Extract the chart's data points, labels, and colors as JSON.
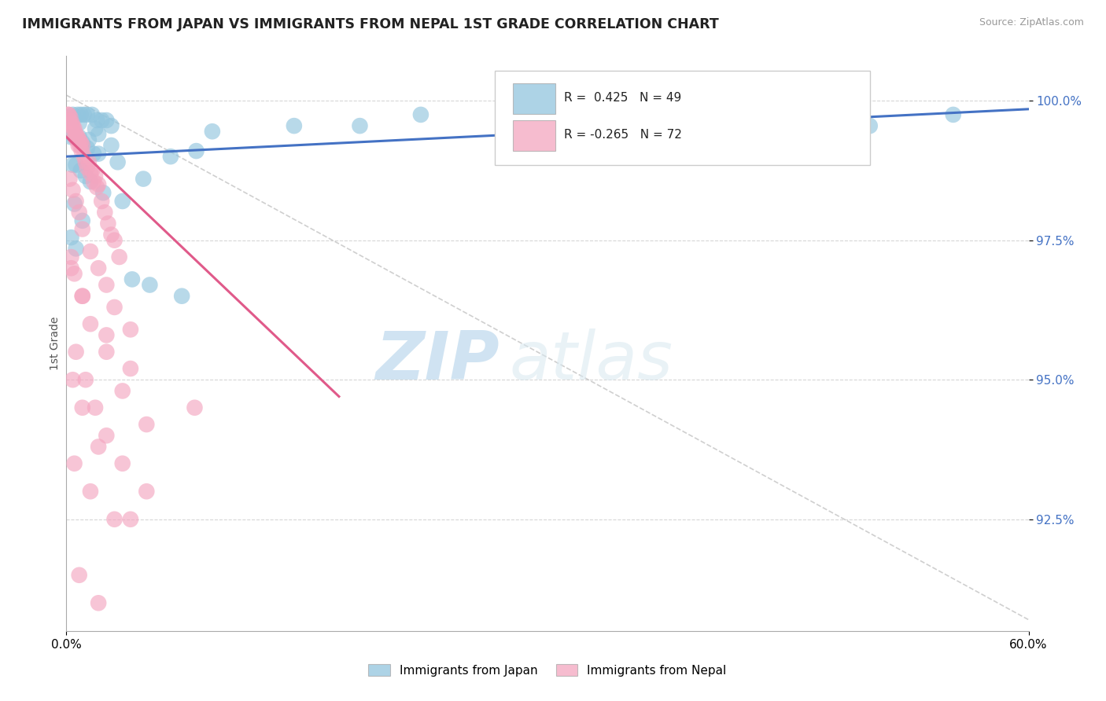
{
  "title": "IMMIGRANTS FROM JAPAN VS IMMIGRANTS FROM NEPAL 1ST GRADE CORRELATION CHART",
  "source": "Source: ZipAtlas.com",
  "ylabel": "1st Grade",
  "xlim": [
    0.0,
    60.0
  ],
  "ylim": [
    90.5,
    100.8
  ],
  "xticks": [
    0.0,
    60.0
  ],
  "xticklabels": [
    "0.0%",
    "60.0%"
  ],
  "yticks": [
    92.5,
    95.0,
    97.5,
    100.0
  ],
  "yticklabels": [
    "92.5%",
    "95.0%",
    "97.5%",
    "100.0%"
  ],
  "japan_color": "#92c5de",
  "nepal_color": "#f4a6c0",
  "japan_R": 0.425,
  "japan_N": 49,
  "nepal_R": -0.265,
  "nepal_N": 72,
  "legend_label_japan": "Immigrants from Japan",
  "legend_label_nepal": "Immigrants from Nepal",
  "japan_scatter_x": [
    0.4,
    0.7,
    0.9,
    1.1,
    1.3,
    1.6,
    1.9,
    2.2,
    2.5,
    2.8,
    0.3,
    0.5,
    0.8,
    1.0,
    1.3,
    1.7,
    2.0,
    0.4,
    0.6,
    0.9,
    1.2,
    1.5,
    2.3,
    0.5,
    1.0,
    0.3,
    0.6,
    4.1,
    5.2,
    7.2,
    9.1,
    14.2,
    18.3,
    22.1,
    30.5,
    38.2,
    50.1,
    55.3,
    3.5,
    4.8,
    6.5,
    8.1,
    2.0,
    2.8,
    3.2,
    1.8,
    0.8,
    1.4,
    0.2
  ],
  "japan_scatter_y": [
    99.75,
    99.75,
    99.75,
    99.75,
    99.75,
    99.75,
    99.65,
    99.65,
    99.65,
    99.55,
    99.35,
    99.35,
    99.35,
    99.25,
    99.15,
    99.05,
    99.05,
    98.85,
    98.85,
    98.75,
    98.65,
    98.55,
    98.35,
    98.15,
    97.85,
    97.55,
    97.35,
    96.8,
    96.7,
    96.5,
    99.45,
    99.55,
    99.55,
    99.75,
    99.45,
    99.75,
    99.55,
    99.75,
    98.2,
    98.6,
    99.0,
    99.1,
    99.4,
    99.2,
    98.9,
    99.5,
    99.6,
    99.3,
    99.7
  ],
  "nepal_scatter_x": [
    0.1,
    0.15,
    0.2,
    0.25,
    0.3,
    0.35,
    0.4,
    0.45,
    0.5,
    0.55,
    0.6,
    0.65,
    0.7,
    0.75,
    0.8,
    0.85,
    0.9,
    0.95,
    1.0,
    1.1,
    1.2,
    1.3,
    1.4,
    1.5,
    1.6,
    1.7,
    1.8,
    1.9,
    2.0,
    2.2,
    2.4,
    2.6,
    2.8,
    3.0,
    3.3,
    0.2,
    0.4,
    0.6,
    0.8,
    1.0,
    1.5,
    2.0,
    2.5,
    3.0,
    4.0,
    0.3,
    0.5,
    1.0,
    1.5,
    2.5,
    3.5,
    5.0,
    0.4,
    1.0,
    2.0,
    0.5,
    1.5,
    3.0,
    4.0,
    0.8,
    2.0,
    0.6,
    1.2,
    1.8,
    2.5,
    3.5,
    5.0,
    0.3,
    1.0,
    2.5,
    4.0,
    8.0
  ],
  "nepal_scatter_y": [
    99.75,
    99.75,
    99.65,
    99.7,
    99.55,
    99.6,
    99.55,
    99.45,
    99.5,
    99.35,
    99.4,
    99.3,
    99.35,
    99.2,
    99.3,
    99.2,
    99.25,
    99.1,
    99.2,
    99.0,
    98.9,
    98.8,
    98.9,
    98.7,
    98.75,
    98.55,
    98.65,
    98.45,
    98.5,
    98.2,
    98.0,
    97.8,
    97.6,
    97.5,
    97.2,
    98.6,
    98.4,
    98.2,
    98.0,
    97.7,
    97.3,
    97.0,
    96.7,
    96.3,
    95.9,
    97.2,
    96.9,
    96.5,
    96.0,
    95.5,
    94.8,
    94.2,
    95.0,
    94.5,
    93.8,
    93.5,
    93.0,
    92.5,
    92.5,
    91.5,
    91.0,
    95.5,
    95.0,
    94.5,
    94.0,
    93.5,
    93.0,
    97.0,
    96.5,
    95.8,
    95.2,
    94.5
  ],
  "japan_line_x0": 0.0,
  "japan_line_y0": 99.0,
  "japan_line_x1": 60.0,
  "japan_line_y1": 99.85,
  "nepal_line_x0": 0.0,
  "nepal_line_y0": 99.35,
  "nepal_line_x1": 17.0,
  "nepal_line_y1": 94.7,
  "diag_x0": 0.0,
  "diag_y0": 100.1,
  "diag_x1": 60.0,
  "diag_y1": 90.7,
  "watermark_zip": "ZIP",
  "watermark_atlas": "atlas",
  "background_color": "#ffffff",
  "grid_color": "#cccccc",
  "ytick_color": "#4472c4",
  "japan_line_color": "#4472c4",
  "nepal_line_color": "#e05a8a"
}
